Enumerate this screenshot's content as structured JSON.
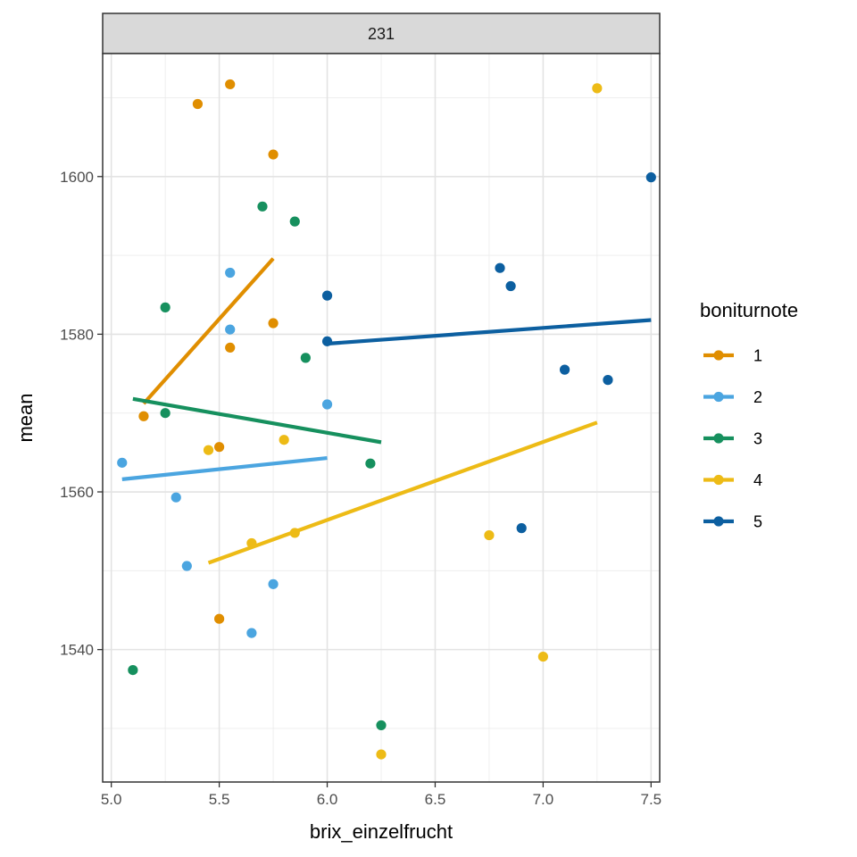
{
  "chart_data": {
    "type": "scatter",
    "facet_label": "231",
    "xlabel": "brix_einzelfrucht",
    "ylabel": "mean",
    "xlim": [
      4.96,
      7.54
    ],
    "ylim": [
      1523.2,
      1615.6
    ],
    "x_ticks": [
      5.0,
      5.5,
      6.0,
      6.5,
      7.0,
      7.5
    ],
    "x_tick_labels": [
      "5.0",
      "5.5",
      "6.0",
      "6.5",
      "7.0",
      "7.5"
    ],
    "y_ticks": [
      1540,
      1560,
      1580,
      1600
    ],
    "y_tick_labels": [
      "1540",
      "1560",
      "1580",
      "1600"
    ],
    "grid": true,
    "theme": "bw",
    "legend": {
      "title": "boniturnote",
      "position": "right"
    },
    "series": [
      {
        "name": "1",
        "color": "#E08E00",
        "points": [
          [
            5.15,
            1569.6
          ],
          [
            5.4,
            1609.2
          ],
          [
            5.5,
            1565.7
          ],
          [
            5.5,
            1543.9
          ],
          [
            5.55,
            1611.7
          ],
          [
            5.55,
            1578.3
          ],
          [
            5.75,
            1602.8
          ],
          [
            5.75,
            1581.4
          ]
        ],
        "fit": [
          [
            5.15,
            1571.2
          ],
          [
            5.75,
            1589.6
          ]
        ]
      },
      {
        "name": "2",
        "color": "#4BA5E0",
        "points": [
          [
            5.05,
            1563.7
          ],
          [
            5.3,
            1559.3
          ],
          [
            5.35,
            1550.6
          ],
          [
            5.55,
            1587.8
          ],
          [
            5.55,
            1580.6
          ],
          [
            5.65,
            1542.1
          ],
          [
            5.75,
            1548.3
          ],
          [
            6.0,
            1571.1
          ]
        ],
        "fit": [
          [
            5.05,
            1561.6
          ],
          [
            6.0,
            1564.3
          ]
        ]
      },
      {
        "name": "3",
        "color": "#16905E",
        "points": [
          [
            5.1,
            1537.4
          ],
          [
            5.25,
            1583.4
          ],
          [
            5.25,
            1570.0
          ],
          [
            5.7,
            1596.2
          ],
          [
            5.85,
            1594.3
          ],
          [
            5.9,
            1577.0
          ],
          [
            6.2,
            1563.6
          ],
          [
            6.25,
            1530.4
          ]
        ],
        "fit": [
          [
            5.1,
            1571.8
          ],
          [
            6.25,
            1566.3
          ]
        ]
      },
      {
        "name": "4",
        "color": "#EDBB16",
        "points": [
          [
            5.45,
            1565.3
          ],
          [
            5.65,
            1553.5
          ],
          [
            5.8,
            1566.6
          ],
          [
            5.85,
            1554.8
          ],
          [
            6.25,
            1526.7
          ],
          [
            6.75,
            1554.5
          ],
          [
            7.0,
            1539.1
          ],
          [
            7.25,
            1611.2
          ]
        ],
        "fit": [
          [
            5.45,
            1551.0
          ],
          [
            7.25,
            1568.8
          ]
        ]
      },
      {
        "name": "5",
        "color": "#0C5FA0",
        "points": [
          [
            6.0,
            1584.9
          ],
          [
            6.0,
            1579.1
          ],
          [
            6.8,
            1588.4
          ],
          [
            6.85,
            1586.1
          ],
          [
            6.9,
            1555.4
          ],
          [
            7.1,
            1575.5
          ],
          [
            7.3,
            1574.2
          ],
          [
            7.5,
            1599.9
          ]
        ],
        "fit": [
          [
            6.0,
            1578.8
          ],
          [
            7.5,
            1581.8
          ]
        ]
      }
    ]
  }
}
